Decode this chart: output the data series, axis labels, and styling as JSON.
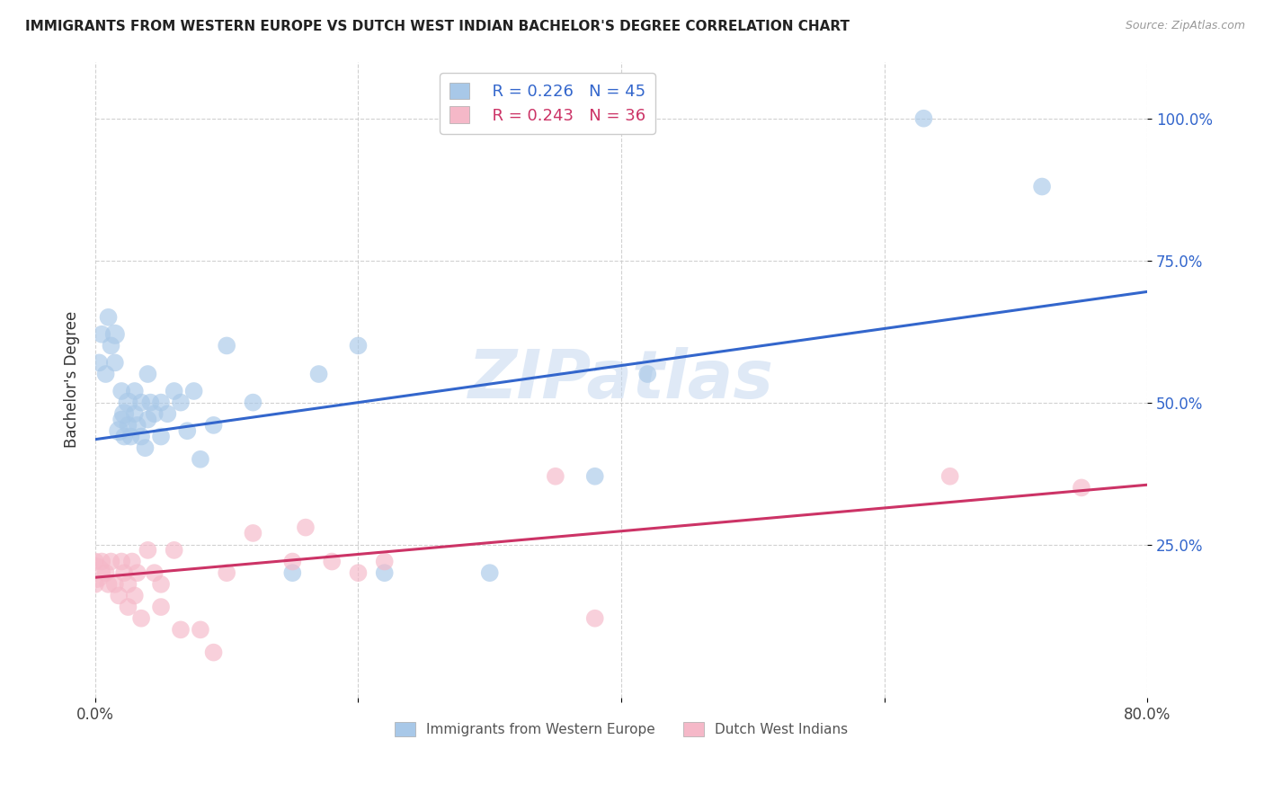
{
  "title": "IMMIGRANTS FROM WESTERN EUROPE VS DUTCH WEST INDIAN BACHELOR'S DEGREE CORRELATION CHART",
  "source": "Source: ZipAtlas.com",
  "ylabel": "Bachelor's Degree",
  "xlim": [
    0.0,
    0.8
  ],
  "ylim": [
    -0.02,
    1.1
  ],
  "xticks": [
    0.0,
    0.2,
    0.4,
    0.6,
    0.8
  ],
  "xticklabels": [
    "0.0%",
    "",
    "",
    "",
    "80.0%"
  ],
  "yticks": [
    0.25,
    0.5,
    0.75,
    1.0
  ],
  "yticklabels": [
    "25.0%",
    "50.0%",
    "75.0%",
    "100.0%"
  ],
  "grid_color": "#cccccc",
  "background_color": "#ffffff",
  "blue_label": "Immigrants from Western Europe",
  "pink_label": "Dutch West Indians",
  "blue_R": "R = 0.226",
  "blue_N": "N = 45",
  "pink_R": "R = 0.243",
  "pink_N": "N = 36",
  "blue_color": "#a8c8e8",
  "pink_color": "#f5b8c8",
  "blue_line_color": "#3366cc",
  "pink_line_color": "#cc3366",
  "blue_x": [
    0.003,
    0.005,
    0.008,
    0.01,
    0.012,
    0.015,
    0.015,
    0.018,
    0.02,
    0.02,
    0.022,
    0.022,
    0.025,
    0.025,
    0.027,
    0.03,
    0.03,
    0.032,
    0.035,
    0.035,
    0.038,
    0.04,
    0.04,
    0.042,
    0.045,
    0.05,
    0.05,
    0.055,
    0.06,
    0.065,
    0.07,
    0.075,
    0.08,
    0.09,
    0.1,
    0.12,
    0.15,
    0.17,
    0.2,
    0.22,
    0.3,
    0.38,
    0.42,
    0.63,
    0.72
  ],
  "blue_y": [
    0.57,
    0.62,
    0.55,
    0.65,
    0.6,
    0.62,
    0.57,
    0.45,
    0.47,
    0.52,
    0.48,
    0.44,
    0.46,
    0.5,
    0.44,
    0.48,
    0.52,
    0.46,
    0.44,
    0.5,
    0.42,
    0.47,
    0.55,
    0.5,
    0.48,
    0.44,
    0.5,
    0.48,
    0.52,
    0.5,
    0.45,
    0.52,
    0.4,
    0.46,
    0.6,
    0.5,
    0.2,
    0.55,
    0.6,
    0.2,
    0.2,
    0.37,
    0.55,
    1.0,
    0.88
  ],
  "blue_sizes": [
    200,
    200,
    200,
    200,
    200,
    250,
    200,
    250,
    200,
    200,
    250,
    200,
    200,
    250,
    200,
    200,
    200,
    200,
    200,
    200,
    200,
    200,
    200,
    200,
    200,
    200,
    200,
    200,
    200,
    200,
    200,
    200,
    200,
    200,
    200,
    200,
    200,
    200,
    200,
    200,
    200,
    200,
    200,
    200,
    200
  ],
  "pink_x": [
    0.0,
    0.0,
    0.0,
    0.005,
    0.008,
    0.01,
    0.012,
    0.015,
    0.018,
    0.02,
    0.022,
    0.025,
    0.025,
    0.028,
    0.03,
    0.032,
    0.035,
    0.04,
    0.045,
    0.05,
    0.05,
    0.06,
    0.065,
    0.08,
    0.09,
    0.1,
    0.12,
    0.15,
    0.16,
    0.18,
    0.2,
    0.22,
    0.35,
    0.38,
    0.65,
    0.75
  ],
  "pink_y": [
    0.2,
    0.22,
    0.18,
    0.22,
    0.2,
    0.18,
    0.22,
    0.18,
    0.16,
    0.22,
    0.2,
    0.18,
    0.14,
    0.22,
    0.16,
    0.2,
    0.12,
    0.24,
    0.2,
    0.18,
    0.14,
    0.24,
    0.1,
    0.1,
    0.06,
    0.2,
    0.27,
    0.22,
    0.28,
    0.22,
    0.2,
    0.22,
    0.37,
    0.12,
    0.37,
    0.35
  ],
  "pink_sizes": [
    200,
    200,
    200,
    200,
    200,
    200,
    200,
    200,
    200,
    200,
    200,
    200,
    200,
    200,
    200,
    200,
    200,
    200,
    200,
    200,
    200,
    200,
    200,
    200,
    200,
    200,
    200,
    200,
    200,
    200,
    200,
    200,
    200,
    200,
    200,
    200
  ],
  "pink_large_idx": 0,
  "pink_large_size": 600,
  "blue_trend_y_start": 0.435,
  "blue_trend_y_end": 0.695,
  "pink_trend_y_start": 0.192,
  "pink_trend_y_end": 0.355
}
